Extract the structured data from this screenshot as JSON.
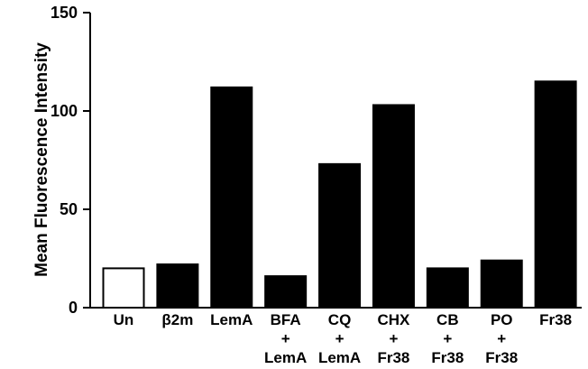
{
  "chart_data": {
    "type": "bar",
    "title": "",
    "xlabel": "",
    "ylabel": "Mean Fluorescence Intensity",
    "ylim": [
      0,
      150
    ],
    "yticks": [
      0,
      50,
      100,
      150
    ],
    "grid": false,
    "categories": [
      {
        "lines": [
          "Un"
        ],
        "value": 20,
        "fill": "#ffffff"
      },
      {
        "lines": [
          "β2m"
        ],
        "value": 22,
        "fill": "#000000"
      },
      {
        "lines": [
          "LemA"
        ],
        "value": 112,
        "fill": "#000000"
      },
      {
        "lines": [
          "BFA",
          "+",
          "LemA"
        ],
        "value": 16,
        "fill": "#000000"
      },
      {
        "lines": [
          "CQ",
          "+",
          "LemA"
        ],
        "value": 73,
        "fill": "#000000"
      },
      {
        "lines": [
          "CHX",
          "+",
          "Fr38"
        ],
        "value": 103,
        "fill": "#000000"
      },
      {
        "lines": [
          "CB",
          "+",
          "Fr38"
        ],
        "value": 20,
        "fill": "#000000"
      },
      {
        "lines": [
          "PO",
          "+",
          "Fr38"
        ],
        "value": 24,
        "fill": "#000000"
      },
      {
        "lines": [
          "Fr38"
        ],
        "value": 115,
        "fill": "#000000"
      }
    ]
  }
}
